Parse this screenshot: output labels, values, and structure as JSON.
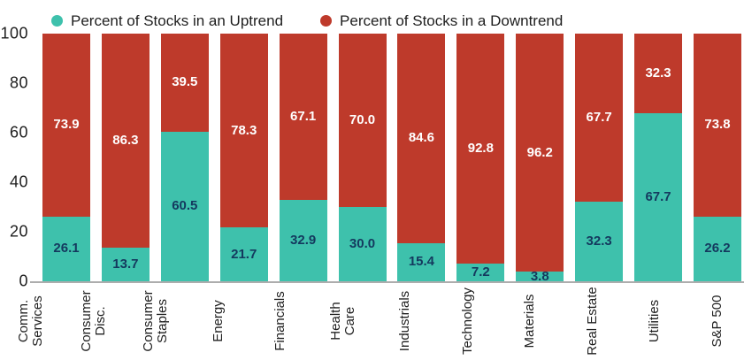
{
  "legend": {
    "items": [
      {
        "label": "Percent of Stocks in an Uptrend",
        "color": "#3ec1ac"
      },
      {
        "label": "Percent of Stocks in a Downtrend",
        "color": "#be3a2b"
      }
    ]
  },
  "colors": {
    "uptrend": "#3ec1ac",
    "downtrend": "#be3a2b",
    "uptrend_label_text": "#14395e",
    "downtrend_label_text": "#ffffff",
    "axis_line": "#adadad",
    "text": "#1e1e1e"
  },
  "chart_data": {
    "type": "bar",
    "stacked": true,
    "units": "percent",
    "legend_position": "top",
    "grid": false,
    "ylim": [
      0,
      100
    ],
    "yticks": [
      "0",
      "20",
      "40",
      "60",
      "80",
      "100"
    ],
    "categories": [
      "Comm.\nServices",
      "Consumer\nDisc.",
      "Consumer\nStaples",
      "Energy",
      "Financials",
      "Health\nCare",
      "Industrials",
      "Technology",
      "Materials",
      "Real Estate",
      "Utilities",
      "S&P 500"
    ],
    "series": [
      {
        "name": "Percent of Stocks in an Uptrend",
        "color": "#3ec1ac",
        "values": [
          26.1,
          13.7,
          60.5,
          21.7,
          32.9,
          30.0,
          15.4,
          7.2,
          3.8,
          32.3,
          67.7,
          26.2
        ],
        "labels": [
          "26.1",
          "13.7",
          "60.5",
          "21.7",
          "32.9",
          "30.0",
          "15.4",
          "7.2",
          "3.8",
          "32.3",
          "67.7",
          "26.2"
        ]
      },
      {
        "name": "Percent of Stocks in a Downtrend",
        "color": "#be3a2b",
        "values": [
          73.9,
          86.3,
          39.5,
          78.3,
          67.1,
          70.0,
          84.6,
          92.8,
          96.2,
          67.7,
          32.3,
          73.8
        ],
        "labels": [
          "73.9",
          "86.3",
          "39.5",
          "78.3",
          "67.1",
          "70.0",
          "84.6",
          "92.8",
          "96.2",
          "67.7",
          "32.3",
          "73.8"
        ]
      }
    ]
  }
}
